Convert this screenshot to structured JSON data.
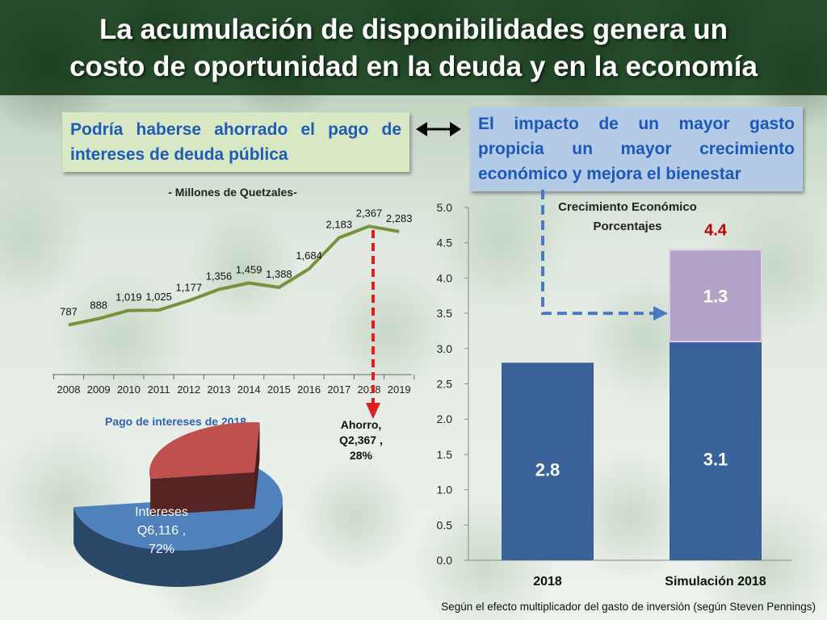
{
  "title_lines": [
    "La acumulación de disponibilidades genera un",
    "costo de oportunidad en la deuda y en la economía"
  ],
  "left_box": {
    "line1": "Podría haberse ahorrado el pago de",
    "line2": "intereses de deuda pública"
  },
  "right_box": {
    "line1": "El impacto de un mayor gasto",
    "line2": "propicia un mayor crecimiento",
    "line3": "económico y mejora el bienestar"
  },
  "footnote": "Según el efecto multiplicador del gasto de inversión (según Steven Pennings)",
  "colors": {
    "line_green": "#77933c",
    "pie_blue": "#4f81bd",
    "pie_red": "#c0504d",
    "bar_blue": "#3a6198",
    "bar_purple": "#b3a2c7",
    "arrow_red": "#e02020",
    "arrow_blue": "#4a7ac4",
    "total_red": "#c00000"
  },
  "chart_data": [
    {
      "type": "line",
      "subtitle": "- Millones de Quetzales-",
      "x": [
        "2008",
        "2009",
        "2010",
        "2011",
        "2012",
        "2013",
        "2014",
        "2015",
        "2016",
        "2017",
        "2018",
        "2019"
      ],
      "series": [
        {
          "values": [
            787,
            888,
            1019,
            1025,
            1177,
            1356,
            1459,
            1388,
            1684,
            2183,
            2367,
            2283
          ],
          "labels": [
            "787",
            "888",
            "1,019",
            "1,025",
            "1,177",
            "1,356",
            "1,459",
            "1,388",
            "1,684",
            "2,183",
            "2,367",
            "2,283"
          ]
        }
      ]
    },
    {
      "type": "pie",
      "title": "Pago de intereses de 2018",
      "slices": [
        {
          "label_lines": [
            "Intereses",
            "Q6,116 ,",
            "72%"
          ],
          "value": 6116,
          "percent": 72
        },
        {
          "label_lines": [
            "Ahorro,",
            "Q2,367 ,",
            "28%"
          ],
          "value": 2367,
          "percent": 28
        }
      ]
    },
    {
      "type": "bar",
      "title_lines": [
        "Crecimiento Económico",
        "Porcentajes"
      ],
      "categories": [
        "2018",
        "Simulación 2018"
      ],
      "series": [
        {
          "values": [
            2.8,
            3.1
          ],
          "labels": [
            "2.8",
            "3.1"
          ]
        },
        {
          "values": [
            0,
            1.3
          ],
          "labels": [
            "",
            "1.3"
          ]
        }
      ],
      "total_label": "4.4",
      "ylim": [
        0,
        5.0
      ],
      "yticks": [
        "0.0",
        "0.5",
        "1.0",
        "1.5",
        "2.0",
        "2.5",
        "3.0",
        "3.5",
        "4.0",
        "4.5",
        "5.0"
      ]
    }
  ]
}
